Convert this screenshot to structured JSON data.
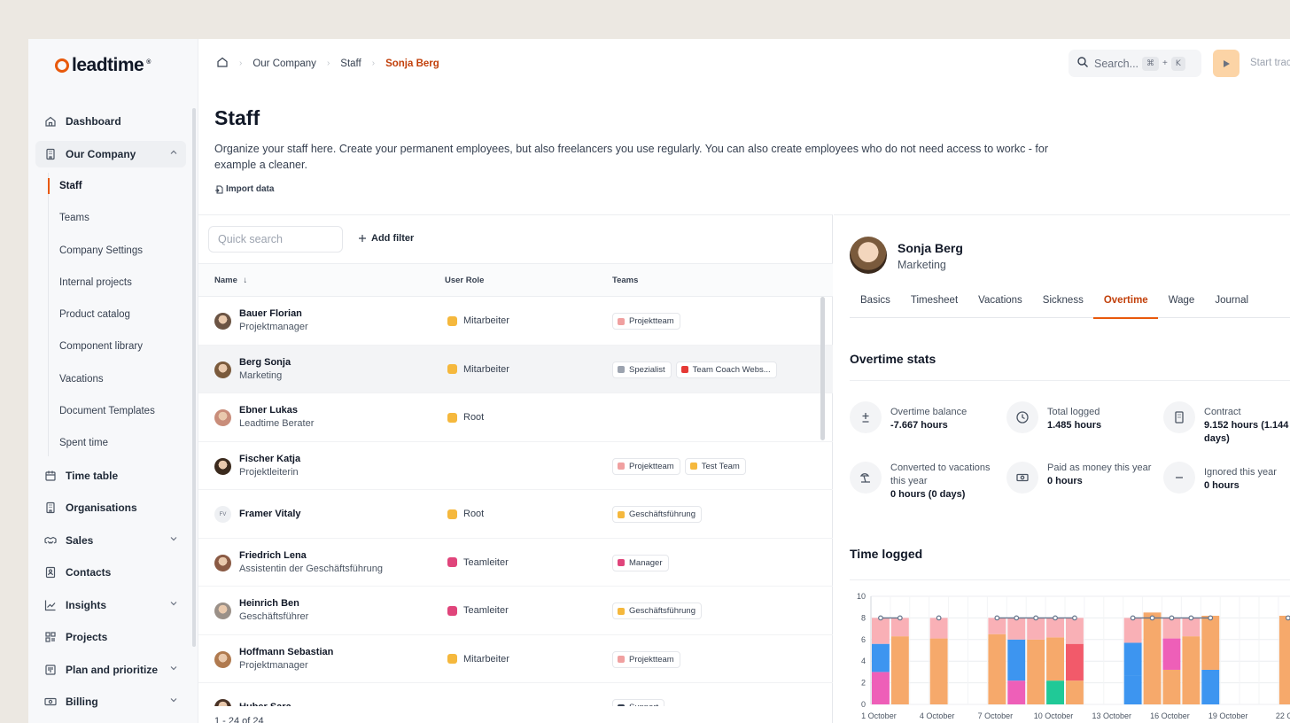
{
  "app": {
    "logo_text": "leadtime",
    "brand_color": "#e8590c"
  },
  "sidebar": {
    "items": [
      {
        "label": "Dashboard",
        "icon": "home-icon"
      },
      {
        "label": "Our Company",
        "icon": "building-icon",
        "expanded": true
      },
      {
        "label": "Time table",
        "icon": "calendar-icon"
      },
      {
        "label": "Organisations",
        "icon": "building-icon"
      },
      {
        "label": "Sales",
        "icon": "handshake-icon",
        "collapsible": true
      },
      {
        "label": "Contacts",
        "icon": "contacts-icon"
      },
      {
        "label": "Insights",
        "icon": "chart-line-icon",
        "collapsible": true
      },
      {
        "label": "Projects",
        "icon": "grid-icon"
      },
      {
        "label": "Plan and prioritize",
        "icon": "board-icon",
        "collapsible": true
      },
      {
        "label": "Billing",
        "icon": "money-icon",
        "collapsible": true
      }
    ],
    "sub_items": [
      {
        "label": "Staff",
        "active": true
      },
      {
        "label": "Teams"
      },
      {
        "label": "Company Settings"
      },
      {
        "label": "Internal projects"
      },
      {
        "label": "Product catalog"
      },
      {
        "label": "Component library"
      },
      {
        "label": "Vacations"
      },
      {
        "label": "Document Templates"
      },
      {
        "label": "Spent time"
      }
    ]
  },
  "topbar": {
    "breadcrumbs": [
      "Our Company",
      "Staff",
      "Sonja Berg"
    ],
    "search_placeholder": "Search...",
    "shortcut_keys": [
      "⌘",
      "+",
      "K"
    ],
    "start_label": "Start trac"
  },
  "page": {
    "title": "Staff",
    "description": "Organize your staff here. Create your permanent employees, but also freelancers you use regularly. You can also create employees who do not need access to workc - for example a cleaner.",
    "import_label": "Import data"
  },
  "table": {
    "search_placeholder": "Quick search",
    "add_filter_label": "Add filter",
    "columns": [
      "Name",
      "User Role",
      "Teams"
    ],
    "rows": [
      {
        "name": "Bauer Florian",
        "position": "Projektmanager",
        "role": "Mitarbeiter",
        "role_color": "#f5b83d",
        "teams": [
          {
            "label": "Projektteam",
            "color": "#f0a0a0"
          }
        ],
        "avatar_color": "#6b5444"
      },
      {
        "name": "Berg Sonja",
        "position": "Marketing",
        "role": "Mitarbeiter",
        "role_color": "#f5b83d",
        "teams": [
          {
            "label": "Spezialist",
            "color": "#9ca3af"
          },
          {
            "label": "Team Coach Webs...",
            "color": "#e53935"
          }
        ],
        "avatar_color": "#7a5a3c",
        "selected": true
      },
      {
        "name": "Ebner Lukas",
        "position": "Leadtime Berater",
        "role": "Root",
        "role_color": "#f5b83d",
        "teams": [],
        "avatar_color": "#c98d7a"
      },
      {
        "name": "Fischer Katja",
        "position": "Projektleiterin",
        "role": "",
        "role_color": "",
        "teams": [
          {
            "label": "Projektteam",
            "color": "#f0a0a0"
          },
          {
            "label": "Test Team",
            "color": "#f5b83d"
          }
        ],
        "avatar_color": "#3b2a1d"
      },
      {
        "name": "Framer Vitaly",
        "position": "",
        "initials": "FV",
        "role": "Root",
        "role_color": "#f5b83d",
        "teams": [
          {
            "label": "Geschäftsführung",
            "color": "#f5b83d"
          }
        ],
        "avatar_color": ""
      },
      {
        "name": "Friedrich Lena",
        "position": "Assistentin der Geschäftsführung",
        "role": "Teamleiter",
        "role_color": "#e0457b",
        "teams": [
          {
            "label": "Manager",
            "color": "#e0457b"
          }
        ],
        "avatar_color": "#8a5a44"
      },
      {
        "name": "Heinrich Ben",
        "position": "Geschäftsführer",
        "role": "Teamleiter",
        "role_color": "#e0457b",
        "teams": [
          {
            "label": "Geschäftsführung",
            "color": "#f5b83d"
          }
        ],
        "avatar_color": "#9a9088"
      },
      {
        "name": "Hoffmann Sebastian",
        "position": "Projektmanager",
        "role": "Mitarbeiter",
        "role_color": "#f5b83d",
        "teams": [
          {
            "label": "Projektteam",
            "color": "#f0a0a0"
          }
        ],
        "avatar_color": "#b07a4f"
      },
      {
        "name": "Huber Sara",
        "position": "",
        "role": "",
        "role_color": "",
        "teams": [
          {
            "label": "Support",
            "color": "#374151"
          }
        ],
        "avatar_color": "#4a3326"
      }
    ],
    "pagination": "1 - 24 of 24"
  },
  "detail": {
    "name": "Sonja Berg",
    "department": "Marketing",
    "tabs": [
      "Basics",
      "Timesheet",
      "Vacations",
      "Sickness",
      "Overtime",
      "Wage",
      "Journal"
    ],
    "active_tab": "Overtime",
    "overtime_title": "Overtime stats",
    "stats": [
      {
        "label": "Overtime balance",
        "value": "-7.667 hours",
        "icon": "plus-minus-icon"
      },
      {
        "label": "Total logged",
        "value": "1.485 hours",
        "icon": "clock-icon"
      },
      {
        "label": "Contract",
        "value": "9.152 hours (1.144 days)",
        "icon": "building-icon"
      },
      {
        "label": "Converted to vacations this year",
        "value": "0 hours (0 days)",
        "icon": "beach-icon"
      },
      {
        "label": "Paid as money this year",
        "value": "0 hours",
        "icon": "money-icon"
      },
      {
        "label": "Ignored this year",
        "value": "0 hours",
        "icon": "minus-icon"
      }
    ],
    "time_logged_title": "Time logged"
  },
  "chart_data": {
    "type": "bar",
    "stacked": true,
    "y_ticks": [
      0,
      2,
      4,
      6,
      8,
      10
    ],
    "ylim": [
      0,
      10
    ],
    "x_tick_labels": [
      "1 October",
      "4 October",
      "7 October",
      "10 October",
      "13 October",
      "16 October",
      "19 October",
      "22 Oc"
    ],
    "days": [
      1,
      2,
      4,
      7,
      8,
      9,
      10,
      11,
      14,
      15,
      16,
      17,
      18,
      22
    ],
    "target_line_days": [
      [
        1,
        2
      ],
      [
        7,
        8,
        9,
        10,
        11
      ],
      [
        14,
        15,
        16,
        17,
        18
      ]
    ],
    "target_points_days": [
      4,
      22
    ],
    "target_hours": 8,
    "colors": {
      "orange": "#f6a96b",
      "pink_light": "#f9b0b6",
      "blue": "#3d95f0",
      "magenta": "#ee5fb8",
      "teal": "#20c997",
      "red": "#f25a6a",
      "line": "#64748b"
    },
    "stacks": [
      [
        {
          "c": "magenta",
          "v": 3
        },
        {
          "c": "blue",
          "v": 2.6
        },
        {
          "c": "pink_light",
          "v": 2.4
        }
      ],
      [
        {
          "c": "orange",
          "v": 6.3
        },
        {
          "c": "pink_light",
          "v": 1.7
        }
      ],
      [
        {
          "c": "orange",
          "v": 6.1
        },
        {
          "c": "pink_light",
          "v": 1.9
        }
      ],
      [
        {
          "c": "orange",
          "v": 6.5
        },
        {
          "c": "pink_light",
          "v": 1.5
        }
      ],
      [
        {
          "c": "magenta",
          "v": 2.2
        },
        {
          "c": "blue",
          "v": 3.8
        },
        {
          "c": "pink_light",
          "v": 2
        }
      ],
      [
        {
          "c": "orange",
          "v": 6
        },
        {
          "c": "pink_light",
          "v": 2
        }
      ],
      [
        {
          "c": "teal",
          "v": 2.2
        },
        {
          "c": "orange",
          "v": 4
        },
        {
          "c": "pink_light",
          "v": 1.8
        }
      ],
      [
        {
          "c": "orange",
          "v": 2.2
        },
        {
          "c": "red",
          "v": 3.4
        },
        {
          "c": "pink_light",
          "v": 2.4
        }
      ],
      [
        {
          "c": "blue",
          "v": 2.7
        },
        {
          "c": "blue",
          "v": 3
        },
        {
          "c": "pink_light",
          "v": 2.3
        }
      ],
      [
        {
          "c": "orange",
          "v": 8.5
        }
      ],
      [
        {
          "c": "orange",
          "v": 3.2
        },
        {
          "c": "magenta",
          "v": 2.9
        },
        {
          "c": "pink_light",
          "v": 1.9
        }
      ],
      [
        {
          "c": "orange",
          "v": 6.3
        },
        {
          "c": "pink_light",
          "v": 1.7
        }
      ],
      [
        {
          "c": "blue",
          "v": 3.2
        },
        {
          "c": "orange",
          "v": 5
        }
      ],
      [
        {
          "c": "orange",
          "v": 8.2
        }
      ]
    ]
  }
}
